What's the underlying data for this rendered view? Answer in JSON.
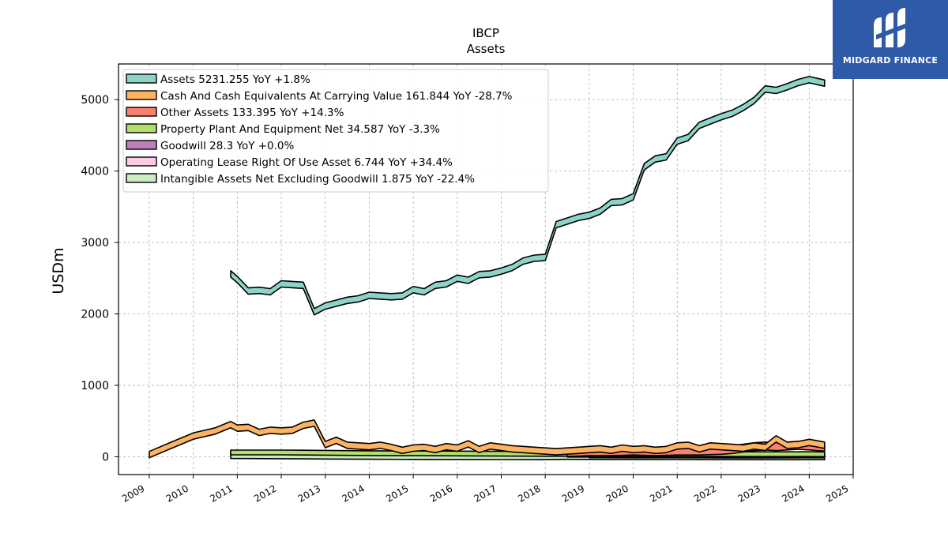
{
  "brand": {
    "name": "MIDGARD FINANCE",
    "color": "#2e5aa8"
  },
  "chart_data": {
    "type": "area",
    "title": "IBCP",
    "subtitle": "Assets",
    "ylabel": "USDm",
    "xlabel": "",
    "ylim": [
      -250,
      5500
    ],
    "xlim": [
      2008.3,
      2025.0
    ],
    "yticks": [
      0,
      1000,
      2000,
      3000,
      4000,
      5000
    ],
    "xticks": [
      2009,
      2010,
      2011,
      2012,
      2013,
      2014,
      2015,
      2016,
      2017,
      2018,
      2019,
      2020,
      2021,
      2022,
      2023,
      2024,
      2025
    ],
    "grid": true,
    "legend_position": "top-left",
    "series": [
      {
        "name": "Assets",
        "legend": "Assets  5231.255 YoY +1.8%",
        "color": "#8dd3c7",
        "x": [
          2010.85,
          2011.0,
          2011.25,
          2011.5,
          2011.75,
          2012.0,
          2012.25,
          2012.5,
          2012.75,
          2013.0,
          2013.25,
          2013.5,
          2013.75,
          2014.0,
          2014.25,
          2014.5,
          2014.75,
          2015.0,
          2015.25,
          2015.5,
          2015.75,
          2016.0,
          2016.25,
          2016.5,
          2016.75,
          2017.0,
          2017.25,
          2017.5,
          2017.75,
          2018.0,
          2018.25,
          2018.5,
          2018.75,
          2019.0,
          2019.25,
          2019.5,
          2019.75,
          2020.0,
          2020.25,
          2020.5,
          2020.75,
          2021.0,
          2021.25,
          2021.5,
          2021.75,
          2022.0,
          2022.25,
          2022.5,
          2022.75,
          2023.0,
          2023.25,
          2023.5,
          2023.75,
          2024.0,
          2024.35
        ],
        "values": [
          2560,
          2480,
          2320,
          2330,
          2310,
          2420,
          2410,
          2400,
          2030,
          2110,
          2150,
          2190,
          2210,
          2260,
          2250,
          2240,
          2250,
          2340,
          2310,
          2400,
          2420,
          2500,
          2470,
          2550,
          2560,
          2600,
          2650,
          2740,
          2780,
          2790,
          3250,
          3300,
          3350,
          3380,
          3440,
          3560,
          3570,
          3640,
          4060,
          4170,
          4200,
          4420,
          4470,
          4640,
          4700,
          4760,
          4810,
          4890,
          4990,
          5150,
          5130,
          5180,
          5240,
          5280,
          5231.255
        ]
      },
      {
        "name": "Cash And Cash Equivalents At Carrying Value",
        "legend": "Cash And Cash Equivalents At Carrying Value  161.844 YoY -28.7%",
        "color": "#fdb462",
        "x": [
          2009.0,
          2009.5,
          2010.0,
          2010.5,
          2010.85,
          2011.0,
          2011.25,
          2011.5,
          2011.75,
          2012.0,
          2012.25,
          2012.5,
          2012.75,
          2013.0,
          2013.25,
          2013.5,
          2013.75,
          2014.0,
          2014.25,
          2014.5,
          2014.75,
          2015.0,
          2015.25,
          2015.5,
          2015.75,
          2016.0,
          2016.25,
          2016.5,
          2016.75,
          2017.0,
          2017.25,
          2017.5,
          2017.75,
          2018.0,
          2018.25,
          2018.5,
          2018.75,
          2019.0,
          2019.25,
          2019.5,
          2019.75,
          2020.0,
          2020.25,
          2020.5,
          2020.75,
          2021.0,
          2021.25,
          2021.5,
          2021.75,
          2022.0,
          2022.25,
          2022.5,
          2022.75,
          2023.0,
          2023.25,
          2023.5,
          2023.75,
          2024.0,
          2024.35
        ],
        "values": [
          30,
          160,
          290,
          360,
          450,
          400,
          410,
          340,
          370,
          360,
          370,
          440,
          470,
          170,
          230,
          160,
          150,
          140,
          160,
          130,
          90,
          120,
          130,
          100,
          140,
          120,
          180,
          100,
          150,
          130,
          110,
          100,
          90,
          80,
          70,
          80,
          90,
          100,
          110,
          90,
          120,
          100,
          110,
          90,
          100,
          150,
          160,
          110,
          150,
          140,
          130,
          120,
          150,
          130,
          250,
          160,
          170,
          200,
          161.844
        ]
      },
      {
        "name": "Other Assets",
        "legend": "Other Assets  133.395 YoY +14.3%",
        "color": "#fb8072",
        "x": [
          2018.5,
          2019.0,
          2019.5,
          2020.0,
          2020.5,
          2021.0,
          2021.5,
          2022.0,
          2022.25,
          2022.5,
          2022.75,
          2023.0,
          2023.25,
          2023.5,
          2023.75,
          2024.0,
          2024.35
        ],
        "values": [
          60,
          70,
          70,
          80,
          70,
          80,
          80,
          90,
          100,
          120,
          140,
          150,
          140,
          150,
          160,
          150,
          133.395
        ]
      },
      {
        "name": "Property Plant And Equipment Net",
        "legend": "Property Plant And Equipment Net  34.587 YoY -3.3%",
        "color": "#b3de69",
        "x": [
          2010.85,
          2012.0,
          2013.0,
          2014.0,
          2015.0,
          2016.0,
          2017.0,
          2018.0,
          2019.0,
          2020.0,
          2021.0,
          2022.0,
          2023.0,
          2024.0,
          2024.35
        ],
        "values": [
          60,
          60,
          55,
          50,
          48,
          45,
          42,
          40,
          40,
          38,
          37,
          36,
          35,
          35,
          34.587
        ]
      },
      {
        "name": "Goodwill",
        "legend": "Goodwill  28.3 YoY +0.0%",
        "color": "#bc80bd",
        "x": [
          2018.5,
          2019.0,
          2020.0,
          2021.0,
          2022.0,
          2023.0,
          2024.0,
          2024.35
        ],
        "values": [
          28.3,
          28.3,
          28.3,
          28.3,
          28.3,
          28.3,
          28.3,
          28.3
        ]
      },
      {
        "name": "Operating Lease Right Of Use Asset",
        "legend": "Operating Lease Right Of Use Asset  6.744 YoY +34.4%",
        "color": "#fccde5",
        "x": [
          2019.0,
          2020.0,
          2021.0,
          2022.0,
          2023.0,
          2024.0,
          2024.35
        ],
        "values": [
          8,
          7,
          6,
          5,
          5,
          6,
          6.744
        ]
      },
      {
        "name": "Intangible Assets Net Excluding Goodwill",
        "legend": "Intangible Assets Net Excluding Goodwill  1.875 YoY -22.4%",
        "color": "#ccebc5",
        "x": [
          2010.85,
          2012.0,
          2013.0,
          2014.0,
          2015.0,
          2016.0,
          2017.0,
          2018.0,
          2018.5,
          2019.0,
          2020.0,
          2021.0,
          2022.0,
          2023.0,
          2024.0,
          2024.35
        ],
        "values": [
          20,
          16,
          12,
          9,
          7,
          5,
          4,
          3,
          8,
          6,
          5,
          4,
          3,
          2.5,
          2,
          1.875
        ]
      }
    ]
  }
}
